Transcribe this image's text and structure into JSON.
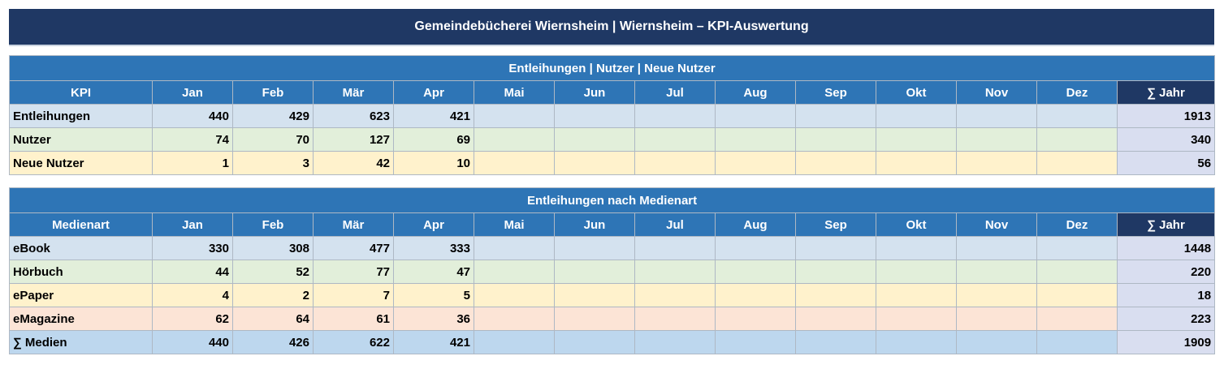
{
  "title": "Gemeindebücherei Wiernsheim  |  Wiernsheim – KPI-Auswertung",
  "months": [
    "Jan",
    "Feb",
    "Mär",
    "Apr",
    "Mai",
    "Jun",
    "Jul",
    "Aug",
    "Sep",
    "Okt",
    "Nov",
    "Dez"
  ],
  "year_label": "∑ Jahr",
  "colors": {
    "title_bg": "#1f3864",
    "header_bg": "#2e75b6",
    "year_header_bg": "#1f3864",
    "row_blue": "#d4e2ef",
    "row_green": "#e2efda",
    "row_yellow": "#fff2cc",
    "row_red": "#fce4d6",
    "row_total": "#bdd7ee",
    "year_cell": "#d9def0"
  },
  "table_kpi": {
    "section_title": "Entleihungen | Nutzer | Neue Nutzer",
    "first_col_header": "KPI",
    "rows": [
      {
        "label": "Entleihungen",
        "color": "blue",
        "values": [
          "440",
          "429",
          "623",
          "421",
          "",
          "",
          "",
          "",
          "",
          "",
          "",
          ""
        ],
        "total": "1913"
      },
      {
        "label": "Nutzer",
        "color": "green",
        "values": [
          "74",
          "70",
          "127",
          "69",
          "",
          "",
          "",
          "",
          "",
          "",
          "",
          ""
        ],
        "total": "340"
      },
      {
        "label": "Neue Nutzer",
        "color": "yellow",
        "values": [
          "1",
          "3",
          "42",
          "10",
          "",
          "",
          "",
          "",
          "",
          "",
          "",
          ""
        ],
        "total": "56"
      }
    ]
  },
  "table_media": {
    "section_title": "Entleihungen nach Medienart",
    "first_col_header": "Medienart",
    "rows": [
      {
        "label": "eBook",
        "color": "blue",
        "values": [
          "330",
          "308",
          "477",
          "333",
          "",
          "",
          "",
          "",
          "",
          "",
          "",
          ""
        ],
        "total": "1448"
      },
      {
        "label": "Hörbuch",
        "color": "green",
        "values": [
          "44",
          "52",
          "77",
          "47",
          "",
          "",
          "",
          "",
          "",
          "",
          "",
          ""
        ],
        "total": "220"
      },
      {
        "label": "ePaper",
        "color": "yellow",
        "values": [
          "4",
          "2",
          "7",
          "5",
          "",
          "",
          "",
          "",
          "",
          "",
          "",
          ""
        ],
        "total": "18"
      },
      {
        "label": "eMagazine",
        "color": "red",
        "values": [
          "62",
          "64",
          "61",
          "36",
          "",
          "",
          "",
          "",
          "",
          "",
          "",
          ""
        ],
        "total": "223"
      },
      {
        "label": "∑ Medien",
        "color": "total",
        "values": [
          "440",
          "426",
          "622",
          "421",
          "",
          "",
          "",
          "",
          "",
          "",
          "",
          ""
        ],
        "total": "1909"
      }
    ]
  }
}
